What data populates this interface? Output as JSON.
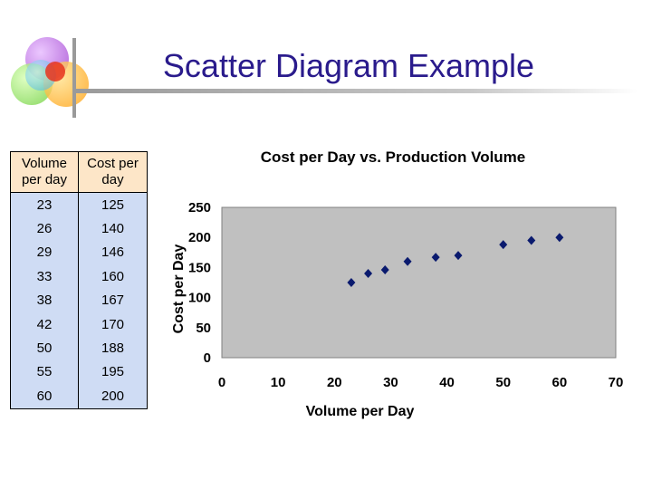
{
  "slide": {
    "title": "Scatter Diagram Example",
    "logo_icon": "overlapping-colored-circles-logo",
    "title_color": "#2a1b8c"
  },
  "table": {
    "headers": [
      "Volume per day",
      "Cost per day"
    ],
    "rows": [
      [
        "23",
        "125"
      ],
      [
        "26",
        "140"
      ],
      [
        "29",
        "146"
      ],
      [
        "33",
        "160"
      ],
      [
        "38",
        "167"
      ],
      [
        "42",
        "170"
      ],
      [
        "50",
        "188"
      ],
      [
        "55",
        "195"
      ],
      [
        "60",
        "200"
      ]
    ],
    "header_color": "#fde6c8",
    "body_color": "#cfdcf4"
  },
  "chart_data": {
    "type": "scatter",
    "title": "Cost per Day vs. Production Volume",
    "xlabel": "Volume per Day",
    "ylabel": "Cost per Day",
    "xlim": [
      0,
      70
    ],
    "ylim": [
      0,
      250
    ],
    "xticks": [
      0,
      10,
      20,
      30,
      40,
      50,
      60,
      70
    ],
    "yticks": [
      0,
      50,
      100,
      150,
      200,
      250
    ],
    "grid": false,
    "legend": "none",
    "plot_background": "#c0c0c0",
    "marker_color": "#0a1a6e",
    "marker": "diamond",
    "series": [
      {
        "x": [
          23,
          26,
          29,
          33,
          38,
          42,
          50,
          55,
          60
        ],
        "y": [
          125,
          140,
          146,
          160,
          167,
          170,
          188,
          195,
          200
        ]
      }
    ]
  }
}
